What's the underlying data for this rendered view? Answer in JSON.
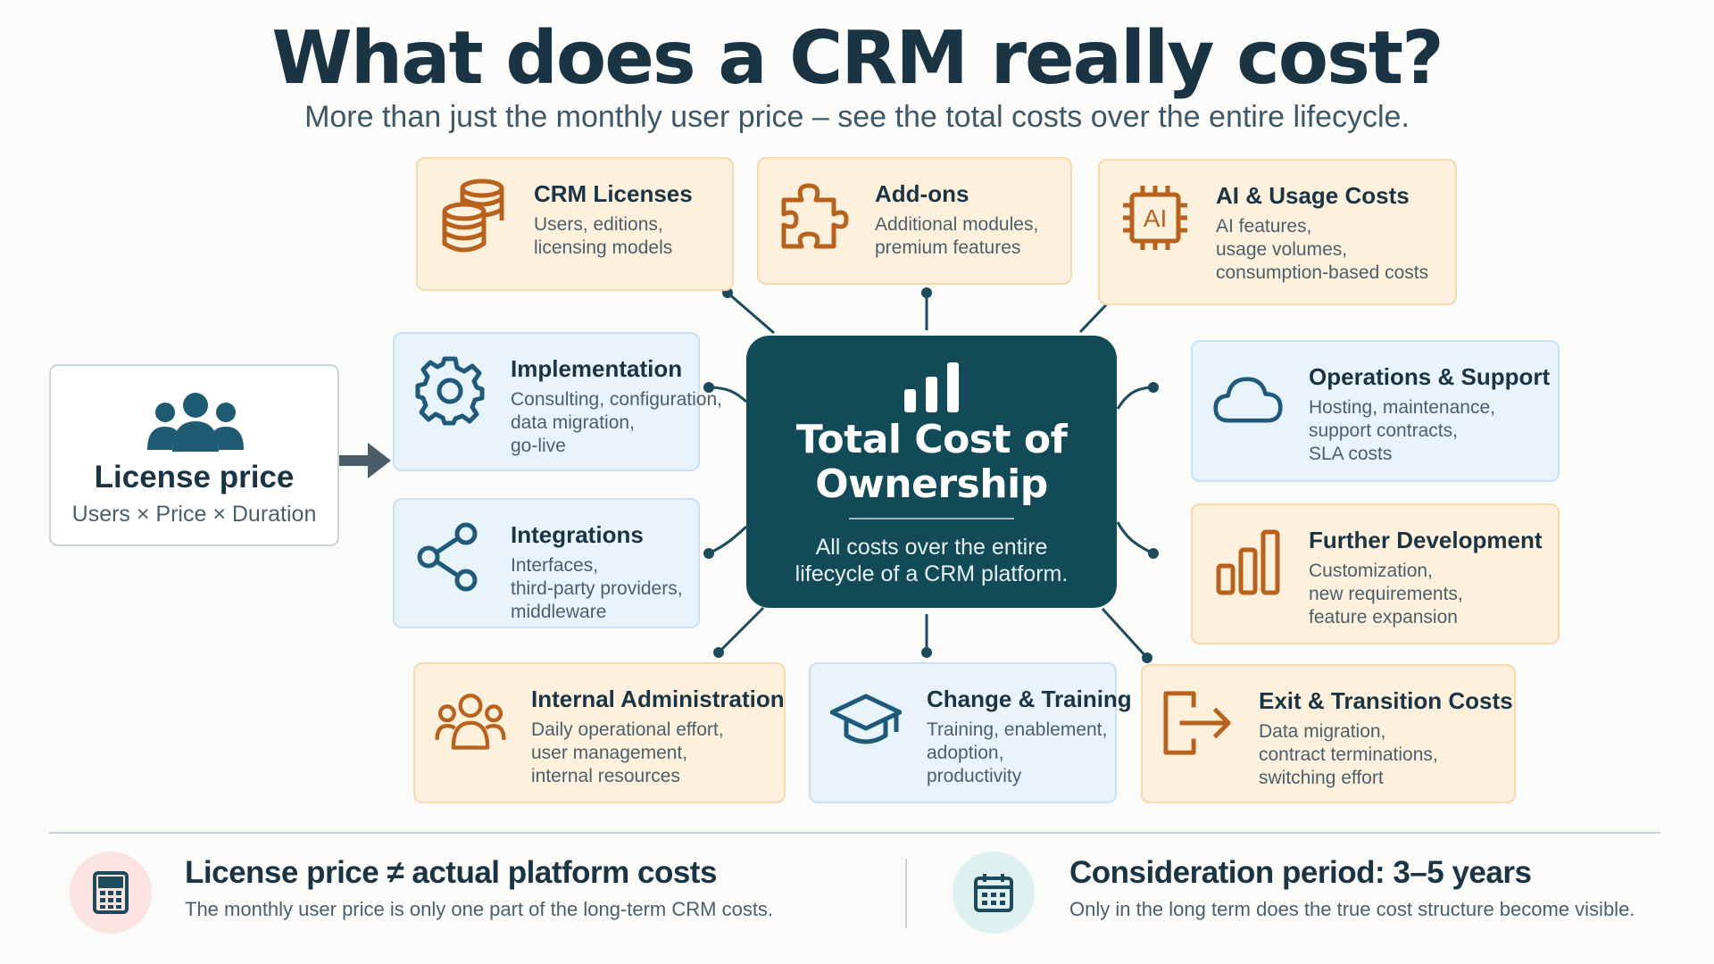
{
  "title": "What does a CRM really cost?",
  "subtitle": "More than just the monthly user price – see the total costs over the entire lifecycle.",
  "center": {
    "title_line1": "Total Cost of",
    "title_line2": "Ownership",
    "desc_line1": "All costs over the entire",
    "desc_line2": "lifecycle of a CRM platform."
  },
  "license_price": {
    "title": "License price",
    "formula": "Users × Price × Duration"
  },
  "cards": {
    "crm_licenses": {
      "title": "CRM Licenses",
      "lines": [
        "Users, editions,",
        "licensing models"
      ]
    },
    "addons": {
      "title": "Add-ons",
      "lines": [
        "Additional modules,",
        "premium features"
      ]
    },
    "ai_usage": {
      "title": "AI & Usage Costs",
      "lines": [
        "AI features,",
        "usage volumes,",
        "consumption-based costs"
      ],
      "icon_text": "AI"
    },
    "implementation": {
      "title": "Implementation",
      "lines": [
        "Consulting, configuration,",
        "data migration,",
        "go-live"
      ]
    },
    "integrations": {
      "title": "Integrations",
      "lines": [
        "Interfaces,",
        "third-party providers,",
        "middleware"
      ]
    },
    "operations": {
      "title": "Operations & Support",
      "lines": [
        "Hosting, maintenance,",
        "support contracts,",
        "SLA costs"
      ]
    },
    "further_dev": {
      "title": "Further Development",
      "lines": [
        "Customization,",
        "new requirements,",
        "feature expansion"
      ]
    },
    "internal_admin": {
      "title": "Internal Administration",
      "lines": [
        "Daily operational effort,",
        "user management,",
        "internal resources"
      ]
    },
    "change_training": {
      "title": "Change & Training",
      "lines": [
        "Training, enablement,",
        "adoption,",
        "productivity"
      ]
    },
    "exit_transition": {
      "title": "Exit & Transition Costs",
      "lines": [
        "Data migration,",
        "contract terminations,",
        "switching effort"
      ]
    }
  },
  "footer": {
    "left": {
      "title": "License price ≠ actual platform costs",
      "desc": "The monthly user price is only one part of the long-term CRM costs."
    },
    "right": {
      "title": "Consideration period: 3–5 years",
      "desc": "Only in the long term does the true cost structure become visible."
    }
  },
  "colors": {
    "primary_dark": "#134a57",
    "warm_card": "#fdf1de",
    "cool_card": "#e9f3fc",
    "warm_icon": "#b8621e",
    "cool_icon": "#1f5a7a"
  },
  "icons": {
    "crm_licenses": "coin-stack-icon",
    "addons": "puzzle-icon",
    "ai_usage": "ai-chip-icon",
    "implementation": "gear-icon",
    "integrations": "share-nodes-icon",
    "operations": "cloud-icon",
    "further_dev": "bar-chart-icon",
    "internal_admin": "people-group-icon",
    "change_training": "graduation-cap-icon",
    "exit_transition": "exit-arrow-icon",
    "license_price": "users-group-icon",
    "footer_left": "calculator-icon",
    "footer_right": "calendar-icon"
  }
}
